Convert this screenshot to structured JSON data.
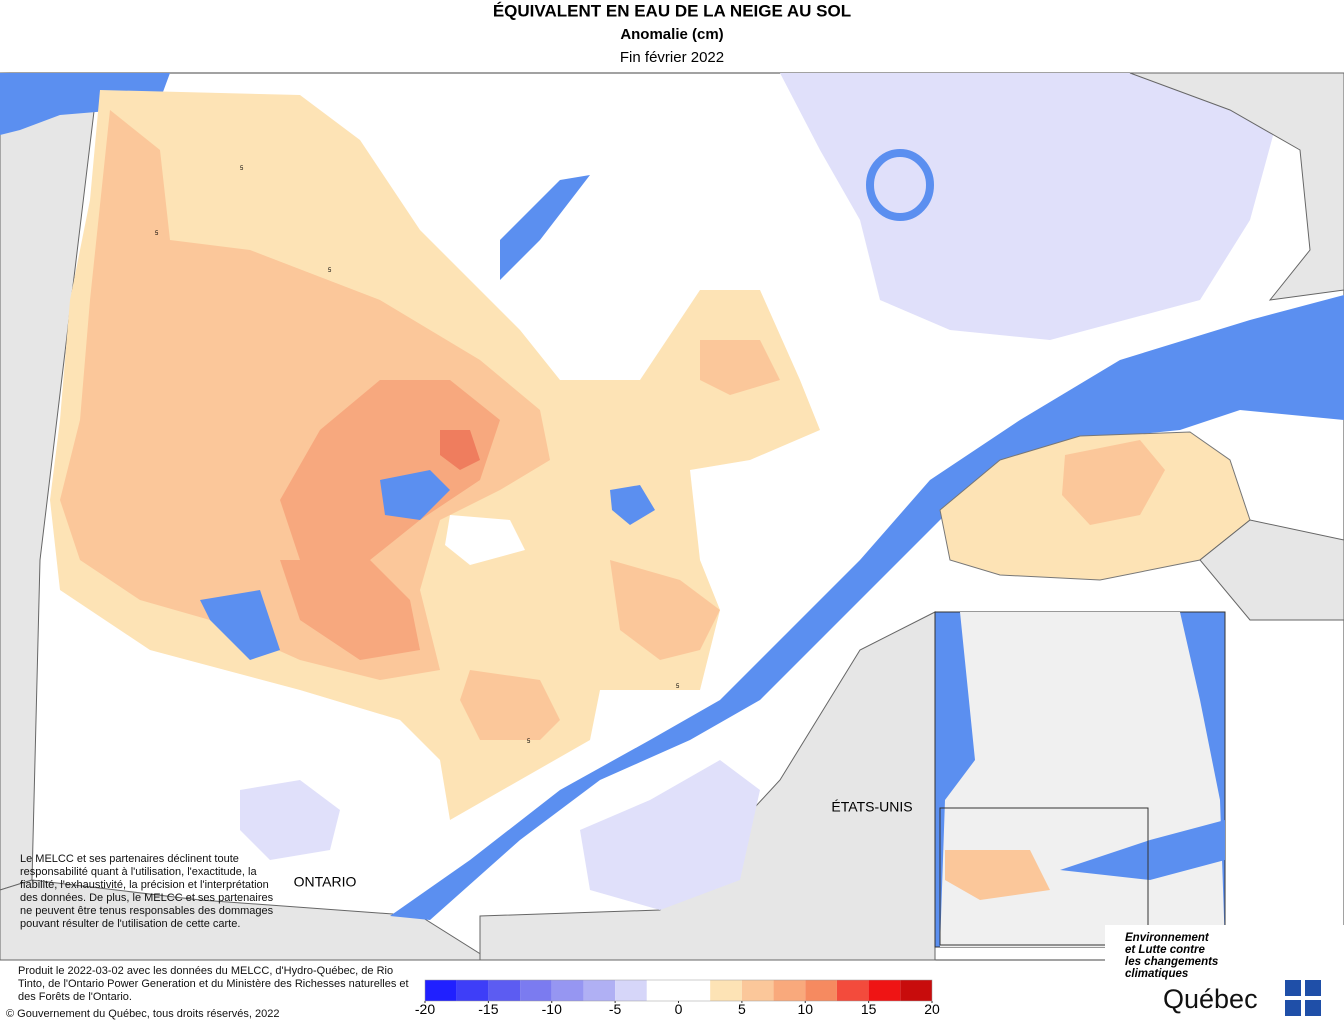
{
  "header": {
    "title": "ÉQUIVALENT EN EAU DE LA NEIGE AU SOL",
    "subtitle": "Anomalie (cm)",
    "date": "Fin février 2022"
  },
  "map": {
    "labels": [
      "ONTARIO",
      "ÉTATS-UNIS"
    ],
    "contour_labels": [
      5,
      5,
      5,
      5,
      5
    ]
  },
  "disclaimer": "Le MELCC et ses partenaires déclinent toute responsabilité quant à l'utilisation, l'exactitude, la fiabilité, l'exhaustivité, la précision et l'interprétation des données. De plus, le MELCC et ses partenaires ne peuvent être tenus responsables des dommages pouvant résulter de l'utilisation de cette carte.",
  "credits": {
    "produced": "Produit le 2022-03-02 avec les données du MELCC, d'Hydro-Québec, de Rio Tinto, de l'Ontario Power Generation et du Ministère des Richesses naturelles et des Forêts de l'Ontario.",
    "copyright": "© Gouvernement du Québec, tous droits réservés, 2022"
  },
  "logo": {
    "ministry": "Environnement et Lutte contre les changements climatiques",
    "name": "Québec"
  },
  "colorbar": {
    "bins": [
      -20,
      -17.5,
      -15,
      -12.5,
      -10,
      -7.5,
      -5,
      -2.5,
      0,
      2.5,
      5,
      7.5,
      10,
      12.5,
      15,
      17.5,
      20
    ],
    "colors": [
      "#2020ff",
      "#3e3ef8",
      "#5c5cf2",
      "#7b7bf0",
      "#9696f2",
      "#b0b0f4",
      "#d6d6f9",
      "#ffffff",
      "#ffffff",
      "#fde3b5",
      "#fbc79a",
      "#f9a97c",
      "#f68a60",
      "#f34b3c",
      "#ef1414",
      "#c80c0c",
      "#9a0a0a"
    ],
    "ticks": [
      -20,
      -15,
      -10,
      -5,
      0,
      5,
      10,
      15,
      20
    ]
  }
}
